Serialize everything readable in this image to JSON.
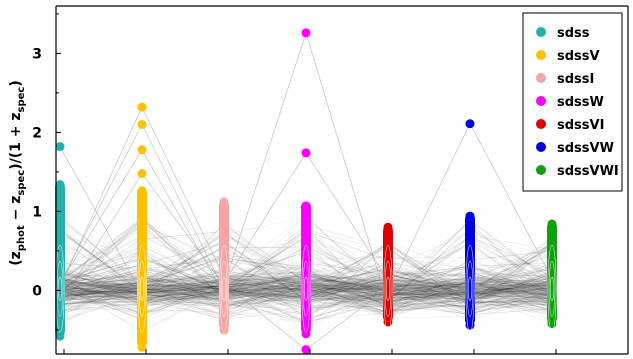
{
  "chart_data": {
    "type": "scatter",
    "ylabel_main": "(z",
    "ylabel_sub1": "phot",
    "ylabel_mid": " − z",
    "ylabel_sub2": "spec",
    "ylabel_mid2": ")/(1 + z",
    "ylabel_sub3": "spec",
    "ylabel_end": ")",
    "ylim": [
      -0.78,
      3.6
    ],
    "yticks": [
      {
        "value": 0,
        "label": "0"
      },
      {
        "value": 1,
        "label": "1"
      },
      {
        "value": 2,
        "label": "2"
      },
      {
        "value": 3,
        "label": "3"
      }
    ],
    "legend_position": "top-right",
    "series": [
      {
        "name": "sdss",
        "color": "#20b2aa",
        "min": -0.58,
        "max": 1.37,
        "core_min": -0.45,
        "core_max": 1.0,
        "outliers": [
          1.82
        ]
      },
      {
        "name": "sdssV",
        "color": "#ffc000",
        "min": -0.72,
        "max": 1.3,
        "core_min": -0.6,
        "core_max": 0.95,
        "outliers": [
          1.48,
          1.78,
          2.1,
          2.32
        ]
      },
      {
        "name": "sdssI",
        "color": "#f4a6a6",
        "min": -0.5,
        "max": 1.14,
        "core_min": -0.42,
        "core_max": 0.9,
        "outliers": []
      },
      {
        "name": "sdssW",
        "color": "#ff00ff",
        "min": -0.55,
        "max": 1.12,
        "core_min": -0.48,
        "core_max": 0.95,
        "outliers": [
          1.74,
          3.26,
          -0.75
        ]
      },
      {
        "name": "sdssVI",
        "color": "#e00000",
        "min": -0.4,
        "max": 0.82,
        "core_min": -0.36,
        "core_max": 0.65,
        "outliers": []
      },
      {
        "name": "sdssVW",
        "color": "#0000e0",
        "min": -0.44,
        "max": 0.97,
        "core_min": -0.4,
        "core_max": 0.9,
        "outliers": [
          2.11
        ]
      },
      {
        "name": "sdssVWI",
        "color": "#10a010",
        "min": -0.42,
        "max": 0.87,
        "core_min": -0.38,
        "core_max": 0.7,
        "outliers": []
      }
    ]
  }
}
